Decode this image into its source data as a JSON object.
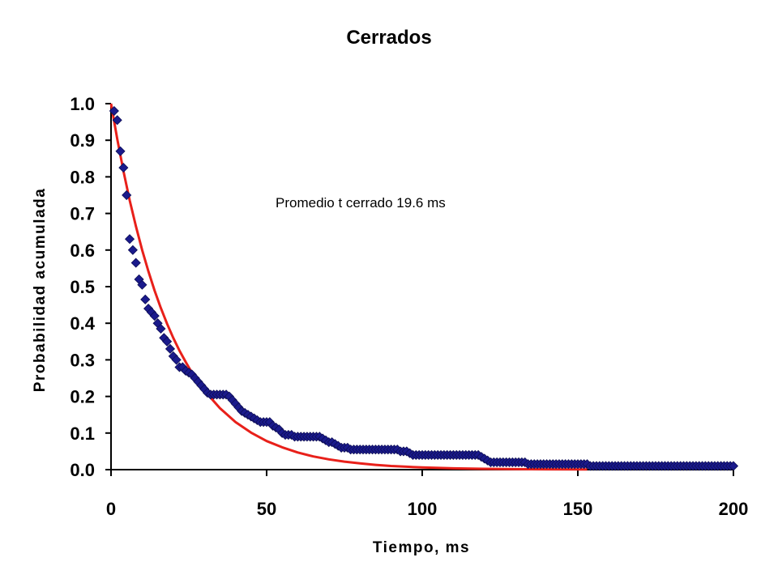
{
  "chart_data": {
    "type": "scatter",
    "title": "Cerrados",
    "xlabel": "Tiempo, ms",
    "ylabel": "Probabilidad acumulada",
    "xlim": [
      0,
      200
    ],
    "ylim": [
      0,
      1
    ],
    "xticks": [
      "0",
      "50",
      "100",
      "150",
      "200"
    ],
    "yticks": [
      "0.0",
      "0.1",
      "0.2",
      "0.3",
      "0.4",
      "0.5",
      "0.6",
      "0.7",
      "0.8",
      "0.9",
      "1.0"
    ],
    "annotation": "Promedio t cerrado 19.6 ms",
    "grid": false,
    "series": [
      {
        "kind": "scatter",
        "marker": "diamond",
        "color": "#1a1a8c",
        "points": [
          [
            1,
            0.98
          ],
          [
            2,
            0.955
          ],
          [
            3,
            0.87
          ],
          [
            4,
            0.825
          ],
          [
            5,
            0.75
          ],
          [
            6,
            0.63
          ],
          [
            7,
            0.6
          ],
          [
            8,
            0.565
          ],
          [
            9,
            0.52
          ],
          [
            10,
            0.505
          ],
          [
            11,
            0.465
          ],
          [
            12,
            0.44
          ],
          [
            13,
            0.43
          ],
          [
            14,
            0.42
          ],
          [
            15,
            0.4
          ],
          [
            16,
            0.385
          ],
          [
            17,
            0.36
          ],
          [
            18,
            0.35
          ],
          [
            19,
            0.33
          ],
          [
            20,
            0.31
          ],
          [
            21,
            0.3
          ],
          [
            22,
            0.28
          ],
          [
            23,
            0.28
          ],
          [
            24,
            0.27
          ],
          [
            25,
            0.265
          ],
          [
            26,
            0.26
          ],
          [
            27,
            0.25
          ],
          [
            28,
            0.24
          ],
          [
            29,
            0.23
          ],
          [
            30,
            0.22
          ],
          [
            31,
            0.21
          ],
          [
            32,
            0.205
          ],
          [
            33,
            0.205
          ],
          [
            34,
            0.205
          ],
          [
            35,
            0.205
          ],
          [
            36,
            0.205
          ],
          [
            37,
            0.205
          ],
          [
            38,
            0.2
          ],
          [
            39,
            0.19
          ],
          [
            40,
            0.18
          ],
          [
            41,
            0.17
          ],
          [
            42,
            0.16
          ],
          [
            43,
            0.155
          ],
          [
            44,
            0.15
          ],
          [
            45,
            0.145
          ],
          [
            46,
            0.14
          ],
          [
            47,
            0.135
          ],
          [
            48,
            0.13
          ],
          [
            49,
            0.13
          ],
          [
            50,
            0.13
          ],
          [
            51,
            0.13
          ],
          [
            52,
            0.12
          ],
          [
            53,
            0.115
          ],
          [
            54,
            0.11
          ],
          [
            55,
            0.1
          ],
          [
            56,
            0.095
          ],
          [
            57,
            0.095
          ],
          [
            58,
            0.095
          ],
          [
            59,
            0.09
          ],
          [
            60,
            0.09
          ],
          [
            61,
            0.09
          ],
          [
            62,
            0.09
          ],
          [
            63,
            0.09
          ],
          [
            64,
            0.09
          ],
          [
            65,
            0.09
          ],
          [
            66,
            0.09
          ],
          [
            67,
            0.09
          ],
          [
            68,
            0.085
          ],
          [
            69,
            0.08
          ],
          [
            70,
            0.075
          ],
          [
            71,
            0.075
          ],
          [
            72,
            0.07
          ],
          [
            73,
            0.065
          ],
          [
            74,
            0.06
          ],
          [
            75,
            0.06
          ],
          [
            76,
            0.06
          ],
          [
            77,
            0.055
          ],
          [
            78,
            0.055
          ],
          [
            79,
            0.055
          ],
          [
            80,
            0.055
          ],
          [
            81,
            0.055
          ],
          [
            82,
            0.055
          ],
          [
            83,
            0.055
          ],
          [
            84,
            0.055
          ],
          [
            85,
            0.055
          ],
          [
            86,
            0.055
          ],
          [
            87,
            0.055
          ],
          [
            88,
            0.055
          ],
          [
            89,
            0.055
          ],
          [
            90,
            0.055
          ],
          [
            91,
            0.055
          ],
          [
            92,
            0.055
          ],
          [
            93,
            0.05
          ],
          [
            94,
            0.05
          ],
          [
            95,
            0.05
          ],
          [
            96,
            0.045
          ],
          [
            97,
            0.04
          ],
          [
            98,
            0.04
          ],
          [
            99,
            0.04
          ],
          [
            100,
            0.04
          ],
          [
            101,
            0.04
          ],
          [
            102,
            0.04
          ],
          [
            103,
            0.04
          ],
          [
            104,
            0.04
          ],
          [
            105,
            0.04
          ],
          [
            106,
            0.04
          ],
          [
            107,
            0.04
          ],
          [
            108,
            0.04
          ],
          [
            109,
            0.04
          ],
          [
            110,
            0.04
          ],
          [
            111,
            0.04
          ],
          [
            112,
            0.04
          ],
          [
            113,
            0.04
          ],
          [
            114,
            0.04
          ],
          [
            115,
            0.04
          ],
          [
            116,
            0.04
          ],
          [
            117,
            0.04
          ],
          [
            118,
            0.04
          ],
          [
            119,
            0.035
          ],
          [
            120,
            0.03
          ],
          [
            121,
            0.025
          ],
          [
            122,
            0.02
          ],
          [
            123,
            0.02
          ],
          [
            124,
            0.02
          ],
          [
            125,
            0.02
          ],
          [
            126,
            0.02
          ],
          [
            127,
            0.02
          ],
          [
            128,
            0.02
          ],
          [
            129,
            0.02
          ],
          [
            130,
            0.02
          ],
          [
            131,
            0.02
          ],
          [
            132,
            0.02
          ],
          [
            133,
            0.02
          ],
          [
            134,
            0.015
          ],
          [
            135,
            0.015
          ],
          [
            136,
            0.015
          ],
          [
            137,
            0.015
          ],
          [
            138,
            0.015
          ],
          [
            139,
            0.015
          ],
          [
            140,
            0.015
          ],
          [
            141,
            0.015
          ],
          [
            142,
            0.015
          ],
          [
            143,
            0.015
          ],
          [
            144,
            0.015
          ],
          [
            145,
            0.015
          ],
          [
            146,
            0.015
          ],
          [
            147,
            0.015
          ],
          [
            148,
            0.015
          ],
          [
            149,
            0.015
          ],
          [
            150,
            0.015
          ],
          [
            151,
            0.015
          ],
          [
            152,
            0.015
          ],
          [
            153,
            0.015
          ],
          [
            154,
            0.01
          ],
          [
            155,
            0.01
          ],
          [
            156,
            0.01
          ],
          [
            157,
            0.01
          ],
          [
            158,
            0.01
          ],
          [
            159,
            0.01
          ],
          [
            160,
            0.01
          ],
          [
            161,
            0.01
          ],
          [
            162,
            0.01
          ],
          [
            163,
            0.01
          ],
          [
            164,
            0.01
          ],
          [
            165,
            0.01
          ],
          [
            166,
            0.01
          ],
          [
            167,
            0.01
          ],
          [
            168,
            0.01
          ],
          [
            169,
            0.01
          ],
          [
            170,
            0.01
          ],
          [
            171,
            0.01
          ],
          [
            172,
            0.01
          ],
          [
            173,
            0.01
          ],
          [
            174,
            0.01
          ],
          [
            175,
            0.01
          ],
          [
            176,
            0.01
          ],
          [
            177,
            0.01
          ],
          [
            178,
            0.01
          ],
          [
            179,
            0.01
          ],
          [
            180,
            0.01
          ],
          [
            181,
            0.01
          ],
          [
            182,
            0.01
          ],
          [
            183,
            0.01
          ],
          [
            184,
            0.01
          ],
          [
            185,
            0.01
          ],
          [
            186,
            0.01
          ],
          [
            187,
            0.01
          ],
          [
            188,
            0.01
          ],
          [
            189,
            0.01
          ],
          [
            190,
            0.01
          ],
          [
            191,
            0.01
          ],
          [
            192,
            0.01
          ],
          [
            193,
            0.01
          ],
          [
            194,
            0.01
          ],
          [
            195,
            0.01
          ],
          [
            196,
            0.01
          ],
          [
            197,
            0.01
          ],
          [
            198,
            0.01
          ],
          [
            199,
            0.01
          ],
          [
            200,
            0.01
          ]
        ]
      },
      {
        "kind": "line",
        "color": "#e8201a",
        "points": [
          [
            0,
            1.0
          ],
          [
            2,
            0.903
          ],
          [
            4,
            0.815
          ],
          [
            6,
            0.736
          ],
          [
            8,
            0.665
          ],
          [
            10,
            0.6
          ],
          [
            12,
            0.542
          ],
          [
            14,
            0.489
          ],
          [
            16,
            0.442
          ],
          [
            18,
            0.399
          ],
          [
            20,
            0.36
          ],
          [
            22,
            0.325
          ],
          [
            24,
            0.294
          ],
          [
            26,
            0.265
          ],
          [
            28,
            0.239
          ],
          [
            30,
            0.216
          ],
          [
            35,
            0.168
          ],
          [
            40,
            0.13
          ],
          [
            45,
            0.101
          ],
          [
            50,
            0.078
          ],
          [
            55,
            0.061
          ],
          [
            60,
            0.047
          ],
          [
            65,
            0.036
          ],
          [
            70,
            0.028
          ],
          [
            75,
            0.022
          ],
          [
            80,
            0.017
          ],
          [
            85,
            0.013
          ],
          [
            90,
            0.01
          ],
          [
            95,
            0.008
          ],
          [
            100,
            0.006
          ],
          [
            110,
            0.0036
          ],
          [
            120,
            0.0022
          ],
          [
            130,
            0.0013
          ],
          [
            140,
            0.0008
          ],
          [
            153,
            0.0004
          ]
        ]
      }
    ]
  }
}
